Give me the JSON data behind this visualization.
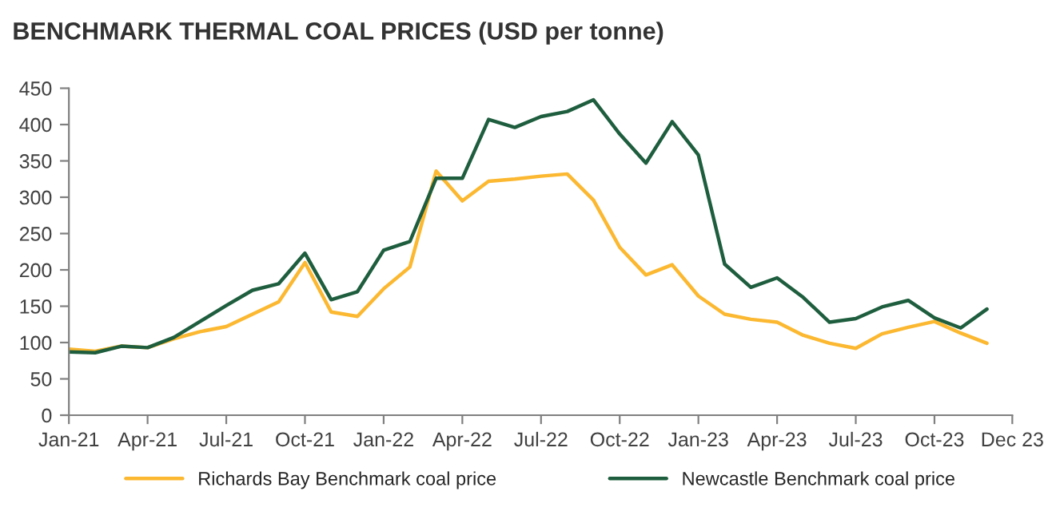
{
  "chart_data": {
    "type": "line",
    "title": "BENCHMARK THERMAL COAL PRICES (USD per tonne)",
    "x": [
      "2021-01",
      "2021-02",
      "2021-03",
      "2021-04",
      "2021-05",
      "2021-06",
      "2021-07",
      "2021-08",
      "2021-09",
      "2021-10",
      "2021-11",
      "2021-12",
      "2022-01",
      "2022-02",
      "2022-03",
      "2022-04",
      "2022-05",
      "2022-06",
      "2022-07",
      "2022-08",
      "2022-09",
      "2022-10",
      "2022-11",
      "2022-12",
      "2023-01",
      "2023-02",
      "2023-03",
      "2023-04",
      "2023-05",
      "2023-06",
      "2023-07",
      "2023-08",
      "2023-09",
      "2023-10",
      "2023-11",
      "2023-12"
    ],
    "series": [
      {
        "name": "Richards Bay Benchmark coal price",
        "color": "#fbb830",
        "values": [
          91,
          88,
          95,
          93,
          105,
          115,
          122,
          139,
          156,
          210,
          142,
          136,
          174,
          204,
          336,
          295,
          322,
          325,
          329,
          332,
          296,
          231,
          193,
          207,
          164,
          139,
          132,
          128,
          110,
          99,
          92,
          112,
          121,
          129,
          113,
          99
        ]
      },
      {
        "name": "Newcastle Benchmark coal price",
        "color": "#1e5e3e",
        "values": [
          87,
          86,
          95,
          93,
          107,
          129,
          151,
          172,
          181,
          223,
          159,
          170,
          227,
          239,
          326,
          326,
          407,
          396,
          411,
          418,
          434,
          387,
          347,
          404,
          358,
          208,
          176,
          189,
          162,
          128,
          133,
          149,
          158,
          134,
          120,
          146
        ]
      }
    ],
    "xlim": [
      "2021-01",
      "2023-12-31"
    ],
    "xticks": [
      {
        "value": "2021-01",
        "label": "Jan-21"
      },
      {
        "value": "2021-04",
        "label": "Apr-21"
      },
      {
        "value": "2021-07",
        "label": "Jul-21"
      },
      {
        "value": "2021-10",
        "label": "Oct-21"
      },
      {
        "value": "2022-01",
        "label": "Jan-22"
      },
      {
        "value": "2022-04",
        "label": "Apr-22"
      },
      {
        "value": "2022-07",
        "label": "Jul-22"
      },
      {
        "value": "2022-10",
        "label": "Oct-22"
      },
      {
        "value": "2023-01",
        "label": "Jan-23"
      },
      {
        "value": "2023-04",
        "label": "Apr-23"
      },
      {
        "value": "2023-07",
        "label": "Jul-23"
      },
      {
        "value": "2023-10",
        "label": "Oct-23"
      },
      {
        "value": "2023-12-31",
        "label": "Dec 23"
      }
    ],
    "ylim": [
      0,
      450
    ],
    "yticks": [
      0,
      50,
      100,
      150,
      200,
      250,
      300,
      350,
      400,
      450
    ],
    "grid": false,
    "legend": "bottom",
    "marker": "none",
    "line_style": "solid"
  }
}
